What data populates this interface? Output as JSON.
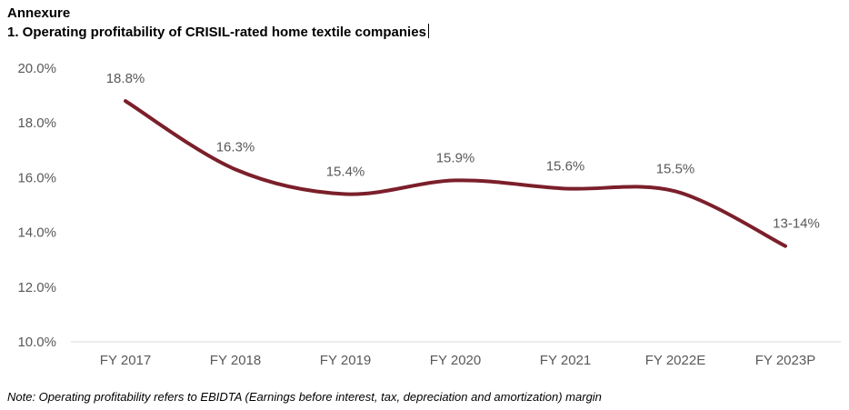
{
  "header": {
    "section": "Annexure",
    "title": "1. Operating profitability of CRISIL-rated home textile companies"
  },
  "note": "Note: Operating profitability refers to EBIDTA (Earnings before interest, tax, depreciation and amortization) margin",
  "chart_data": {
    "type": "line",
    "title": "1. Operating profitability of CRISIL-rated home textile companies",
    "categories": [
      "FY 2017",
      "FY 2018",
      "FY 2019",
      "FY 2020",
      "FY 2021",
      "FY 2022E",
      "FY 2023P"
    ],
    "values": [
      18.8,
      16.3,
      15.4,
      15.9,
      15.6,
      15.5,
      13.5
    ],
    "data_labels": [
      "18.8%",
      "16.3%",
      "15.4%",
      "15.9%",
      "15.6%",
      "15.5%",
      "13-14%"
    ],
    "yticks": [
      "10.0%",
      "12.0%",
      "14.0%",
      "16.0%",
      "18.0%",
      "20.0%"
    ],
    "ytick_values": [
      10,
      12,
      14,
      16,
      18,
      20
    ],
    "ylim": [
      10,
      20
    ],
    "grid": false,
    "smooth": true,
    "line_color": "#7B1F2A",
    "xlabel": "",
    "ylabel": ""
  }
}
